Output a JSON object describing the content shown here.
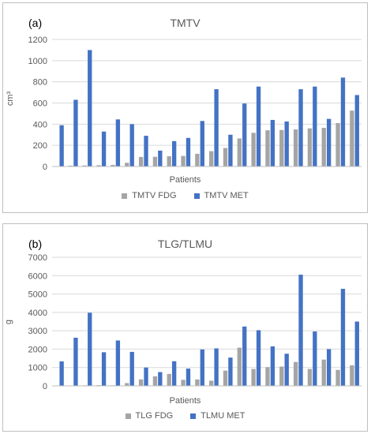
{
  "colors": {
    "fdg": "#a5a5a5",
    "met": "#4472c4",
    "grid": "#d9d9d9",
    "axis": "#bfbfbf"
  },
  "chart_data": [
    {
      "type": "bar",
      "panel_label": "(a)",
      "title": "TMTV",
      "ylabel": "cm³",
      "xlabel": "Patients",
      "ylim": [
        0,
        1200
      ],
      "yticks": [
        "0",
        "200",
        "400",
        "600",
        "800",
        "1000",
        "1200"
      ],
      "ytick_values": [
        0,
        200,
        400,
        600,
        800,
        1000,
        1200
      ],
      "grid": true,
      "legend_position": "bottom",
      "series": [
        {
          "name": "TMTV FDG",
          "values": [
            0,
            8,
            10,
            12,
            15,
            35,
            90,
            92,
            97,
            100,
            120,
            145,
            175,
            265,
            318,
            342,
            345,
            350,
            360,
            365,
            410,
            528
          ]
        },
        {
          "name": "TMTV MET",
          "values": [
            390,
            630,
            1100,
            330,
            445,
            400,
            290,
            150,
            240,
            270,
            430,
            730,
            300,
            595,
            755,
            440,
            425,
            730,
            755,
            450,
            840,
            675
          ]
        }
      ]
    },
    {
      "type": "bar",
      "panel_label": "(b)",
      "title": "TLG/TLMU",
      "ylabel": "g",
      "xlabel": "Patients",
      "ylim": [
        0,
        7000
      ],
      "yticks": [
        "0",
        "1000",
        "2000",
        "3000",
        "4000",
        "5000",
        "6000",
        "7000"
      ],
      "ytick_values": [
        0,
        1000,
        2000,
        3000,
        4000,
        5000,
        6000,
        7000
      ],
      "grid": true,
      "legend_position": "bottom",
      "series": [
        {
          "name": "TLG FDG",
          "values": [
            0,
            20,
            30,
            40,
            30,
            150,
            350,
            520,
            650,
            330,
            350,
            280,
            830,
            2080,
            920,
            1020,
            1050,
            1300,
            920,
            1430,
            870,
            1120
          ]
        },
        {
          "name": "TLMU MET",
          "values": [
            1330,
            2620,
            3980,
            1830,
            2470,
            1850,
            1000,
            750,
            1340,
            940,
            1980,
            2040,
            1540,
            3230,
            3030,
            2150,
            1750,
            6050,
            2960,
            2000,
            5280,
            3500
          ]
        }
      ]
    }
  ]
}
